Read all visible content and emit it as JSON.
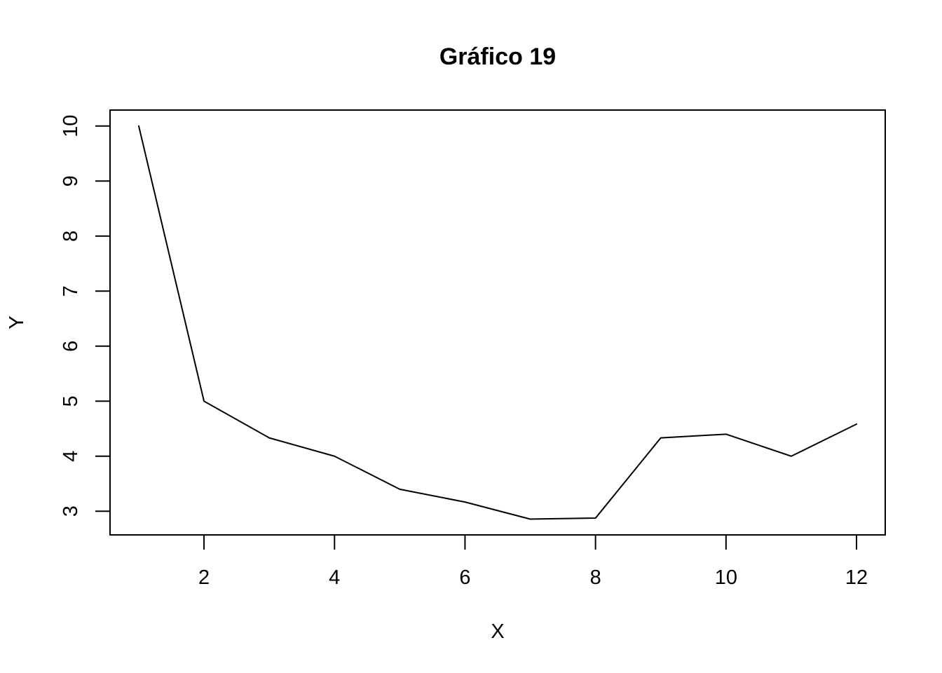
{
  "chart_data": {
    "type": "line",
    "title": "Gráfico 19",
    "xlabel": "X",
    "ylabel": "Y",
    "x": [
      1,
      2,
      3,
      4,
      5,
      6,
      7,
      8,
      9,
      10,
      11,
      12
    ],
    "series": [
      {
        "values": [
          10,
          5,
          4.333,
          4,
          3.4,
          3.167,
          2.857,
          2.875,
          4.333,
          4.4,
          4,
          4.583
        ],
        "color": "#000000"
      }
    ],
    "xlim": [
      0.56,
      12.44
    ],
    "ylim": [
      2.57,
      10.29
    ],
    "xticks": [
      2,
      4,
      6,
      8,
      10,
      12
    ],
    "yticks": [
      3,
      4,
      5,
      6,
      7,
      8,
      9,
      10
    ],
    "grid": false,
    "legend": "none"
  }
}
